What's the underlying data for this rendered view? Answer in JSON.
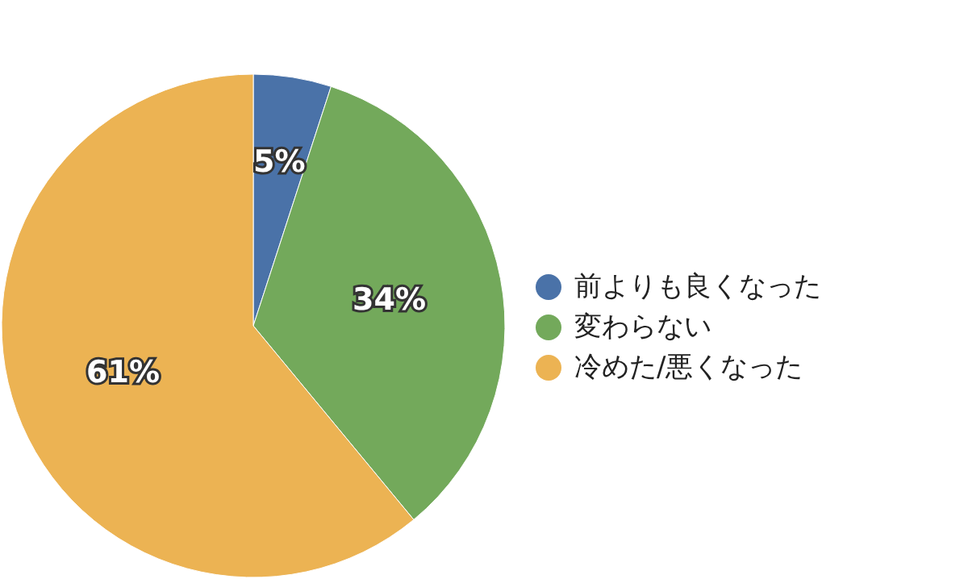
{
  "chart_data": {
    "type": "pie",
    "categories": [
      "前よりも良くなった",
      "変わらない",
      "冷めた/悪くなった"
    ],
    "values": [
      5,
      34,
      61
    ],
    "colors": [
      "#4a72a8",
      "#73a95b",
      "#ecb353"
    ],
    "value_labels": [
      "5%",
      "34%",
      "61%"
    ],
    "legend": "right"
  }
}
